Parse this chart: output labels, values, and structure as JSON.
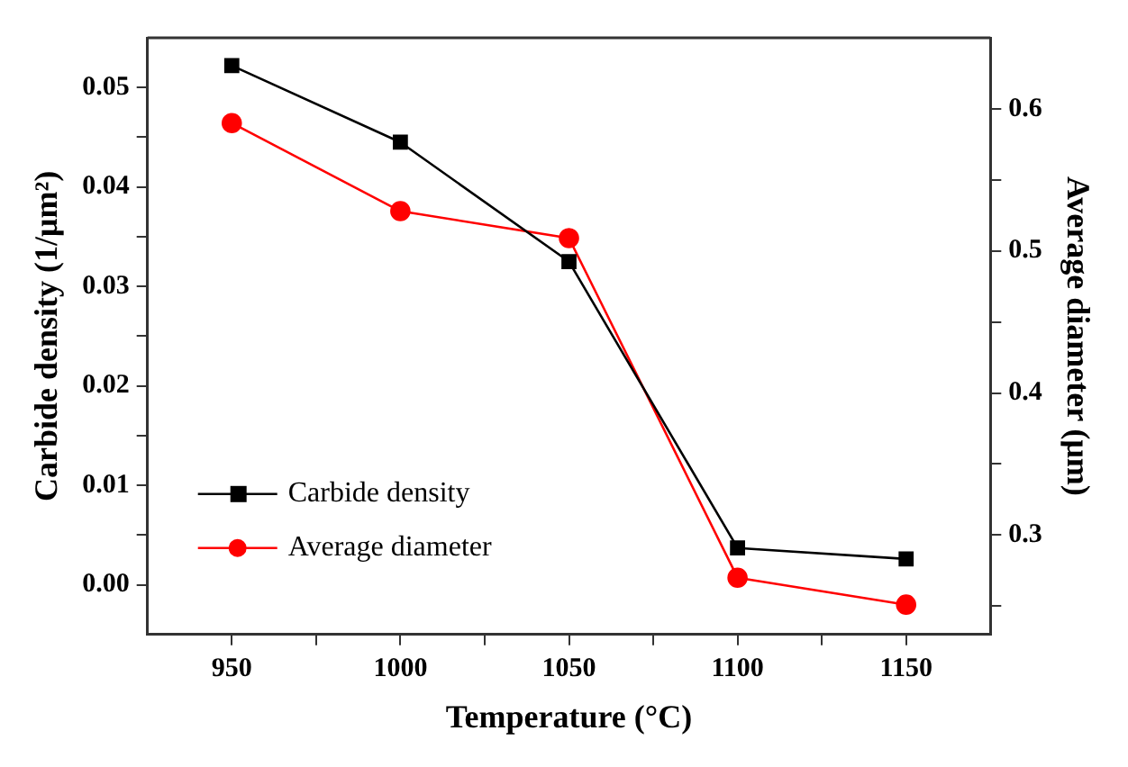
{
  "chart_data": {
    "type": "line",
    "xlabel": "Temperature (°C)",
    "ylabel": "Carbide density (1/μm²)",
    "y2label": "Average diameter (μm)",
    "x": [
      950,
      1000,
      1050,
      1100,
      1150
    ],
    "series": [
      {
        "name": "Carbide density",
        "color": "#000000",
        "marker": "square",
        "values": [
          0.0522,
          0.0445,
          0.0325,
          0.0037,
          0.0026
        ]
      },
      {
        "name": "Average diameter",
        "color": "#ff0000",
        "marker": "circle",
        "axis": "y2",
        "values": [
          0.59,
          0.528,
          0.509,
          0.27,
          0.251
        ]
      }
    ],
    "xlim": [
      925,
      1175
    ],
    "xticks": [
      950,
      {
        "value": 975,
        "label": null
      },
      1000,
      {
        "value": 1025,
        "label": null
      },
      1050,
      {
        "value": 1075,
        "label": null
      },
      1100,
      {
        "value": 1125,
        "label": null
      },
      1150
    ],
    "ylim": [
      -0.005,
      0.055
    ],
    "yticks": [
      {
        "value": 0,
        "label": "0.00"
      },
      {
        "value": 0.005,
        "label": null
      },
      0.01,
      {
        "value": 0.015,
        "label": null
      },
      0.02,
      {
        "value": 0.025,
        "label": null
      },
      0.03,
      {
        "value": 0.035,
        "label": null
      },
      0.04,
      {
        "value": 0.045,
        "label": null
      },
      0.05
    ],
    "y2lim": [
      0.23,
      0.65
    ],
    "y2ticks": [
      {
        "value": 0.25,
        "label": null
      },
      0.3,
      {
        "value": 0.35,
        "label": null
      },
      0.4,
      {
        "value": 0.45,
        "label": null
      },
      0.5,
      {
        "value": 0.55,
        "label": null
      },
      0.6
    ],
    "grid": false,
    "legend": "bottom left",
    "line_style": "solid"
  }
}
